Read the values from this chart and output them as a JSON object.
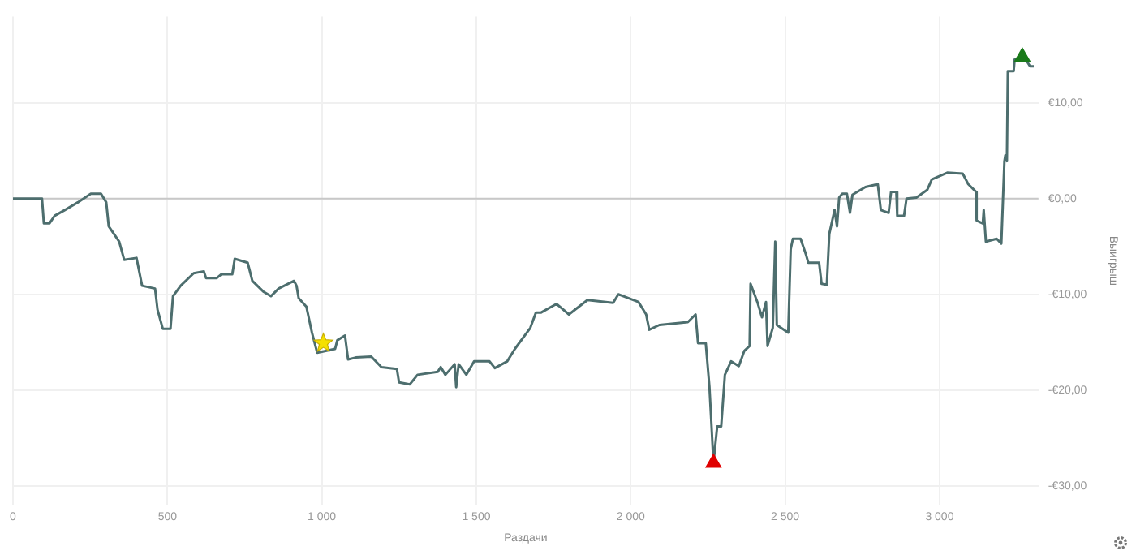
{
  "chart_data": {
    "type": "line",
    "xlabel": "Раздачи",
    "ylabel": "Выигрыш",
    "xlim": [
      0,
      3320
    ],
    "ylim": [
      -32,
      19
    ],
    "xticks": [
      0,
      500,
      {
        "value": 1000,
        "label": "1 000"
      },
      {
        "value": 1500,
        "label": "1 500"
      },
      {
        "value": 2000,
        "label": "2 000"
      },
      {
        "value": 2500,
        "label": "2 500"
      },
      {
        "value": 3000,
        "label": "3 000"
      }
    ],
    "yticks": [
      {
        "value": -30,
        "label": "-€30,00"
      },
      {
        "value": -20,
        "label": "-€20,00"
      },
      {
        "value": -10,
        "label": "-€10,00"
      },
      {
        "value": 0,
        "label": "€0,00"
      },
      {
        "value": 10,
        "label": "€10,00"
      }
    ],
    "grid": true,
    "legend": false,
    "ref_lines": [
      {
        "axis": "y",
        "value": 0,
        "color": "#c8c8c8"
      }
    ],
    "series": [
      {
        "color": "#4d6e6e",
        "marker": "none",
        "x": [
          0,
          2,
          94,
          100,
          118,
          135,
          168,
          210,
          252,
          285,
          302,
          310,
          344,
          360,
          400,
          418,
          460,
          468,
          485,
          510,
          518,
          543,
          585,
          618,
          625,
          660,
          675,
          710,
          718,
          760,
          775,
          810,
          835,
          860,
          910,
          918,
          925,
          950,
          968,
          985,
          1043,
          1050,
          1075,
          1085,
          1110,
          1160,
          1193,
          1243,
          1250,
          1285,
          1310,
          1375,
          1385,
          1400,
          1430,
          1435,
          1443,
          1468,
          1493,
          1543,
          1560,
          1600,
          1625,
          1675,
          1693,
          1710,
          1760,
          1800,
          1860,
          1943,
          1960,
          2025,
          2050,
          2060,
          2093,
          2185,
          2210,
          2218,
          2243,
          2255,
          2268,
          2280,
          2293,
          2305,
          2325,
          2350,
          2368,
          2385,
          2388,
          2410,
          2425,
          2438,
          2443,
          2460,
          2468,
          2473,
          2510,
          2518,
          2525,
          2550,
          2568,
          2575,
          2610,
          2618,
          2635,
          2643,
          2660,
          2668,
          2675,
          2685,
          2700,
          2710,
          2718,
          2760,
          2800,
          2810,
          2835,
          2843,
          2860,
          2863,
          2885,
          2893,
          2925,
          2960,
          2975,
          3025,
          3075,
          3093,
          3118,
          3120,
          3140,
          3143,
          3150,
          3185,
          3200,
          3210,
          3213,
          3218,
          3221,
          3240,
          3243,
          3268,
          3285,
          3293,
          3305
        ],
        "values": [
          0,
          0,
          0,
          -2.6,
          -2.6,
          -1.8,
          -1.2,
          -0.4,
          0.5,
          0.5,
          -0.4,
          -2.9,
          -4.5,
          -6.4,
          -6.2,
          -9.1,
          -9.4,
          -11.6,
          -13.6,
          -13.6,
          -10.2,
          -9.1,
          -7.8,
          -7.6,
          -8.3,
          -8.3,
          -7.9,
          -7.9,
          -6.3,
          -6.7,
          -8.6,
          -9.7,
          -10.2,
          -9.4,
          -8.6,
          -9.1,
          -10.4,
          -11.3,
          -14.0,
          -16.1,
          -15.7,
          -14.8,
          -14.3,
          -16.8,
          -16.6,
          -16.5,
          -17.6,
          -17.8,
          -19.2,
          -19.4,
          -18.4,
          -18.1,
          -17.6,
          -18.4,
          -17.3,
          -19.7,
          -17.3,
          -18.4,
          -17.0,
          -17.0,
          -17.7,
          -17.0,
          -15.7,
          -13.5,
          -11.9,
          -11.9,
          -11.0,
          -12.1,
          -10.6,
          -10.9,
          -10.0,
          -10.8,
          -12.1,
          -13.7,
          -13.2,
          -12.9,
          -12.1,
          -15.1,
          -15.1,
          -19.7,
          -27.6,
          -23.8,
          -23.8,
          -18.4,
          -17.0,
          -17.5,
          -15.9,
          -15.4,
          -8.9,
          -10.8,
          -12.4,
          -10.8,
          -15.4,
          -13.5,
          -4.5,
          -13.2,
          -14.0,
          -5.3,
          -4.2,
          -4.2,
          -5.9,
          -6.7,
          -6.7,
          -8.9,
          -9.0,
          -3.7,
          -1.2,
          -2.9,
          0.1,
          0.5,
          0.5,
          -1.5,
          0.4,
          1.2,
          1.5,
          -1.2,
          -1.5,
          0.7,
          0.7,
          -1.8,
          -1.8,
          0,
          0.1,
          0.9,
          2.0,
          2.7,
          2.6,
          1.5,
          0.7,
          -2.3,
          -2.6,
          -1.2,
          -4.5,
          -4.2,
          -4.7,
          3.9,
          4.5,
          3.9,
          13.3,
          13.3,
          14.5,
          14.8,
          14.2,
          13.8,
          13.8
        ]
      },
      {
        "type": "scatter",
        "color": "#f5e000",
        "marker": "star",
        "x": [
          1005
        ],
        "values": [
          -15.1
        ]
      },
      {
        "type": "scatter",
        "color": "#e00000",
        "marker": "triangle",
        "x": [
          2268
        ],
        "values": [
          -27.6
        ]
      },
      {
        "type": "scatter",
        "color": "#1a7a1a",
        "marker": "triangle",
        "x": [
          3268
        ],
        "values": [
          14.8
        ]
      }
    ]
  }
}
